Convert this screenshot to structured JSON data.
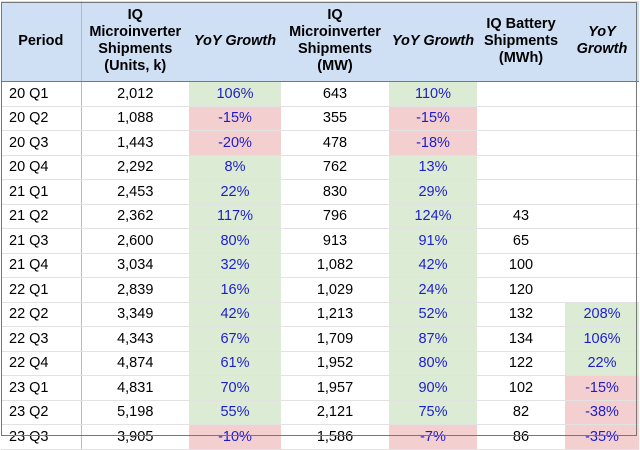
{
  "headers": {
    "period": "Period",
    "micro_units": "IQ Microinverter Shipments (Units, k)",
    "yoy1": "YoY Growth",
    "micro_mw": "IQ Microinverter Shipments (MW)",
    "yoy2": "YoY Growth",
    "battery": "IQ Battery Shipments (MWh)",
    "yoy3": "YoY Growth"
  },
  "colors": {
    "header_bg": "#cfe0f5",
    "positive_bg": "#dcecd4",
    "negative_bg": "#f4cfcf",
    "yoy_text": "#1d1dcc"
  },
  "rows": [
    {
      "period": "20 Q1",
      "units": "2,012",
      "yoy1": "106%",
      "mw": "643",
      "yoy2": "110%",
      "battery": "",
      "yoy3": ""
    },
    {
      "period": "20 Q2",
      "units": "1,088",
      "yoy1": "-15%",
      "mw": "355",
      "yoy2": "-15%",
      "battery": "",
      "yoy3": ""
    },
    {
      "period": "20 Q3",
      "units": "1,443",
      "yoy1": "-20%",
      "mw": "478",
      "yoy2": "-18%",
      "battery": "",
      "yoy3": ""
    },
    {
      "period": "20 Q4",
      "units": "2,292",
      "yoy1": "8%",
      "mw": "762",
      "yoy2": "13%",
      "battery": "",
      "yoy3": ""
    },
    {
      "period": "21 Q1",
      "units": "2,453",
      "yoy1": "22%",
      "mw": "830",
      "yoy2": "29%",
      "battery": "",
      "yoy3": ""
    },
    {
      "period": "21 Q2",
      "units": "2,362",
      "yoy1": "117%",
      "mw": "796",
      "yoy2": "124%",
      "battery": "43",
      "yoy3": ""
    },
    {
      "period": "21 Q3",
      "units": "2,600",
      "yoy1": "80%",
      "mw": "913",
      "yoy2": "91%",
      "battery": "65",
      "yoy3": ""
    },
    {
      "period": "21 Q4",
      "units": "3,034",
      "yoy1": "32%",
      "mw": "1,082",
      "yoy2": "42%",
      "battery": "100",
      "yoy3": ""
    },
    {
      "period": "22 Q1",
      "units": "2,839",
      "yoy1": "16%",
      "mw": "1,029",
      "yoy2": "24%",
      "battery": "120",
      "yoy3": ""
    },
    {
      "period": "22 Q2",
      "units": "3,349",
      "yoy1": "42%",
      "mw": "1,213",
      "yoy2": "52%",
      "battery": "132",
      "yoy3": "208%"
    },
    {
      "period": "22 Q3",
      "units": "4,343",
      "yoy1": "67%",
      "mw": "1,709",
      "yoy2": "87%",
      "battery": "134",
      "yoy3": "106%"
    },
    {
      "period": "22 Q4",
      "units": "4,874",
      "yoy1": "61%",
      "mw": "1,952",
      "yoy2": "80%",
      "battery": "122",
      "yoy3": "22%"
    },
    {
      "period": "23 Q1",
      "units": "4,831",
      "yoy1": "70%",
      "mw": "1,957",
      "yoy2": "90%",
      "battery": "102",
      "yoy3": "-15%"
    },
    {
      "period": "23 Q2",
      "units": "5,198",
      "yoy1": "55%",
      "mw": "2,121",
      "yoy2": "75%",
      "battery": "82",
      "yoy3": "-38%"
    },
    {
      "period": "23 Q3",
      "units": "3,905",
      "yoy1": "-10%",
      "mw": "1,586",
      "yoy2": "-7%",
      "battery": "86",
      "yoy3": "-35%"
    }
  ]
}
